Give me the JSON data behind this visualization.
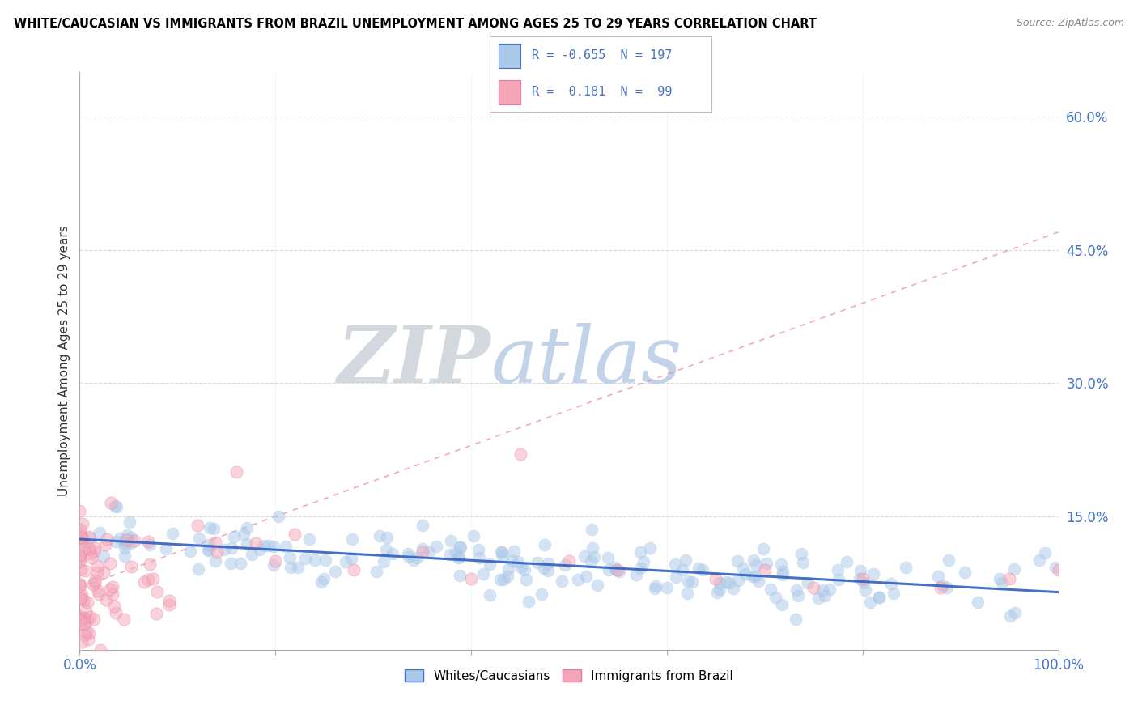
{
  "title": "WHITE/CAUCASIAN VS IMMIGRANTS FROM BRAZIL UNEMPLOYMENT AMONG AGES 25 TO 29 YEARS CORRELATION CHART",
  "source": "Source: ZipAtlas.com",
  "ylabel": "Unemployment Among Ages 25 to 29 years",
  "xlim": [
    0.0,
    1.0
  ],
  "ylim": [
    0.0,
    0.65
  ],
  "y_ticks_right": [
    0.0,
    0.15,
    0.3,
    0.45,
    0.6
  ],
  "y_tick_labels_right": [
    "",
    "15.0%",
    "30.0%",
    "45.0%",
    "60.0%"
  ],
  "legend_R1": "-0.655",
  "legend_N1": "197",
  "legend_R2": "0.181",
  "legend_N2": "99",
  "color_blue": "#aac8e8",
  "color_pink": "#f4a6b8",
  "color_blue_line": "#3060c0",
  "color_pink_line": "#e87090",
  "color_blue_dark": "#4472c4",
  "color_pink_dark": "#e87a9f",
  "watermark_zip": "ZIP",
  "watermark_atlas": "atlas",
  "watermark_color_zip": "#c0c8d0",
  "watermark_color_atlas": "#a8c0e0"
}
